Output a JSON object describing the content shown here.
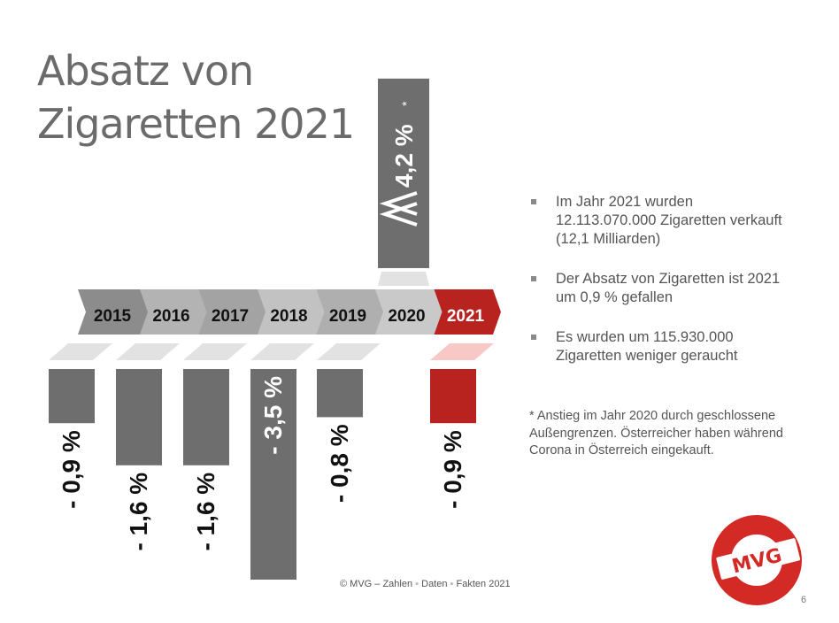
{
  "slide": {
    "title_line1": "Absatz von",
    "title_line2": "Zigaretten 2021",
    "bullets": [
      "Im Jahr 2021 wurden 12.113.070.000 Zigaretten verkauft (12,1 Milliarden)",
      "Der Absatz von Zigaretten ist 2021 um 0,9 % gefallen",
      "Es wurden um 115.930.000 Zigaretten weniger geraucht"
    ],
    "footnote": "* Anstieg im Jahr 2020 durch geschlossene Außengrenzen. Österreicher haben während Corona in Österreich eingekauft.",
    "footer": {
      "copyright": "© MVG – Zahlen",
      "item2": "Daten",
      "item3": "Fakten 2021",
      "separator": "▪"
    },
    "page_number": "6",
    "logo_text": "MVG"
  },
  "colors": {
    "bar_gray": "#6e6e6e",
    "highlight_red": "#b9231f",
    "light_red": "#f7c8c6",
    "text_dark": "#111111",
    "title_gray": "#6b6b6b"
  },
  "chart_data": {
    "type": "bar",
    "categories": [
      "2015",
      "2016",
      "2017",
      "2018",
      "2019",
      "2020",
      "2021"
    ],
    "values": [
      -0.9,
      -1.6,
      -1.6,
      -3.5,
      -0.8,
      4.2,
      -0.9
    ],
    "labels": [
      "- 0,9 %",
      "- 1,6 %",
      "- 1,6 %",
      "- 3,5 %",
      "- 0,8 %",
      "4,2 %",
      "- 0,9 %"
    ],
    "footnote_marker": "*",
    "highlight_category": "2021"
  }
}
